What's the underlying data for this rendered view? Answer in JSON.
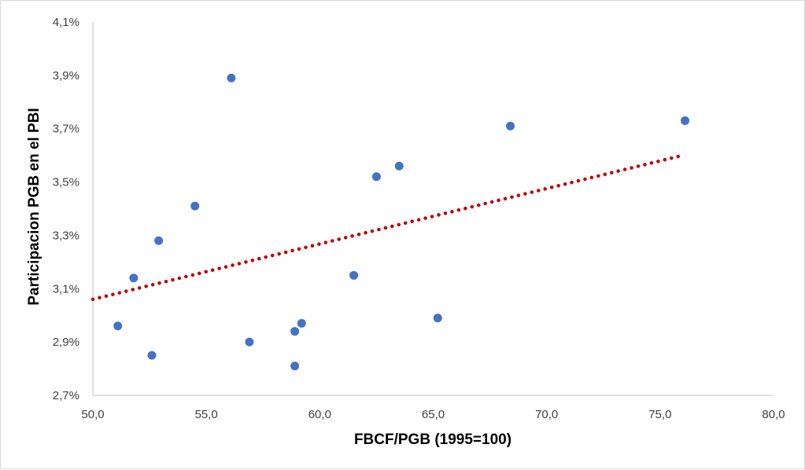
{
  "chart_data": {
    "type": "scatter",
    "title": "",
    "xlabel": "FBCF/PGB (1995=100)",
    "ylabel": "Participacion PGB en el PBI",
    "xlim": [
      50,
      80
    ],
    "ylim": [
      2.7,
      4.1
    ],
    "x_ticks": [
      "50,0",
      "55,0",
      "60,0",
      "65,0",
      "70,0",
      "75,0",
      "80,0"
    ],
    "y_ticks": [
      "2,7%",
      "2,9%",
      "3,1%",
      "3,3%",
      "3,5%",
      "3,7%",
      "3,9%",
      "4,1%"
    ],
    "x_tick_values": [
      50,
      55,
      60,
      65,
      70,
      75,
      80
    ],
    "y_tick_values": [
      2.7,
      2.9,
      3.1,
      3.3,
      3.5,
      3.7,
      3.9,
      4.1
    ],
    "grid": false,
    "legend": "none",
    "series": [
      {
        "color": "#4472C4",
        "points": [
          {
            "x": 51.1,
            "y": 2.96
          },
          {
            "x": 51.8,
            "y": 3.14
          },
          {
            "x": 52.6,
            "y": 2.85
          },
          {
            "x": 52.9,
            "y": 3.28
          },
          {
            "x": 54.5,
            "y": 3.41
          },
          {
            "x": 56.1,
            "y": 3.89
          },
          {
            "x": 56.9,
            "y": 2.9
          },
          {
            "x": 58.9,
            "y": 2.81
          },
          {
            "x": 58.9,
            "y": 2.94
          },
          {
            "x": 59.2,
            "y": 2.97
          },
          {
            "x": 61.5,
            "y": 3.15
          },
          {
            "x": 62.5,
            "y": 3.52
          },
          {
            "x": 63.5,
            "y": 3.56
          },
          {
            "x": 65.2,
            "y": 2.99
          },
          {
            "x": 68.4,
            "y": 3.71
          },
          {
            "x": 76.1,
            "y": 3.73
          }
        ]
      }
    ],
    "trendline": {
      "type": "linear",
      "style": "dotted",
      "color": "#C00000",
      "x_start": 50.0,
      "y_start": 3.06,
      "x_end": 76.0,
      "y_end": 3.6
    }
  }
}
